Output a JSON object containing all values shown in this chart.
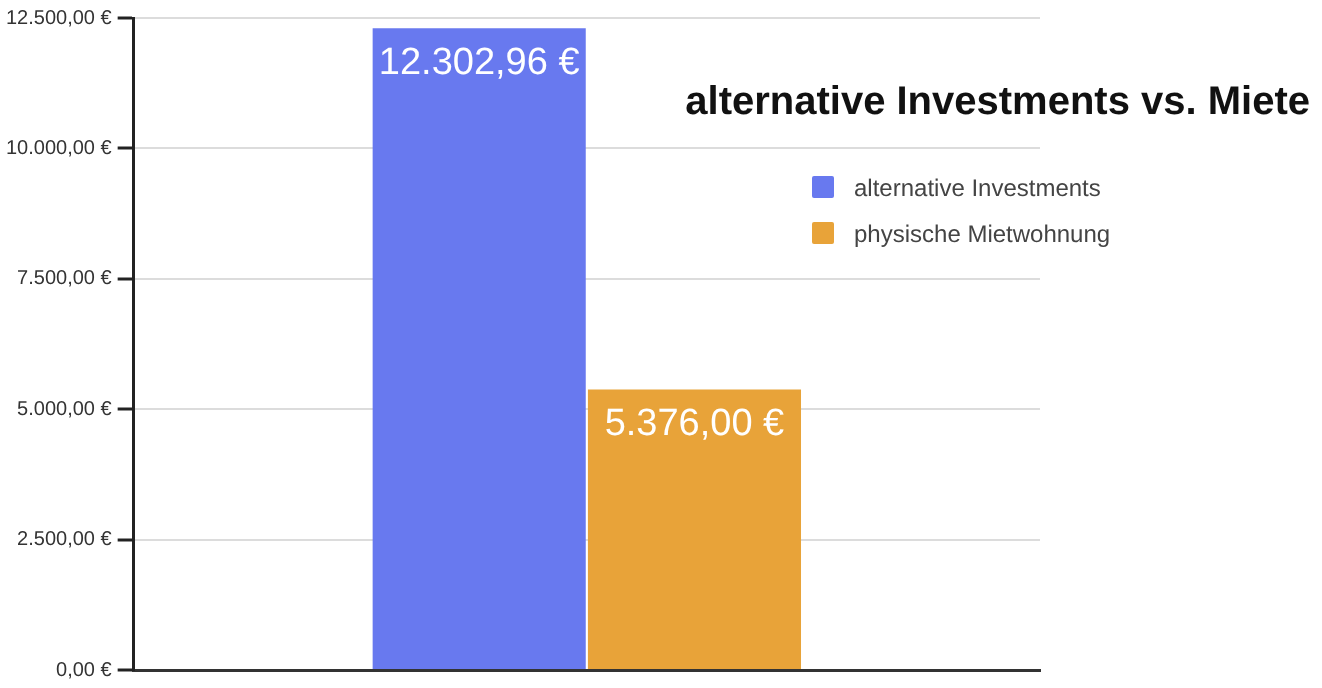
{
  "chart_data": {
    "type": "bar",
    "title": "alternative Investments vs. Miete",
    "categories": [
      null
    ],
    "series": [
      {
        "name": "alternative Investments",
        "color": "#6879ef",
        "values": [
          12302.96
        ],
        "value_labels": [
          "12.302,96 €"
        ]
      },
      {
        "name": "physische Mietwohnung",
        "color": "#e8a339",
        "values": [
          5376.0
        ],
        "value_labels": [
          "5.376,00 €"
        ]
      }
    ],
    "ylim": [
      0,
      12500
    ],
    "yticks": [
      {
        "value": 0,
        "label": "0,00 €"
      },
      {
        "value": 2500,
        "label": "2.500,00 €"
      },
      {
        "value": 5000,
        "label": "5.000,00 €"
      },
      {
        "value": 7500,
        "label": "7.500,00 €"
      },
      {
        "value": 10000,
        "label": "10.000,00 €"
      },
      {
        "value": 12500,
        "label": "12.500,00 €"
      }
    ],
    "grid": "y",
    "legend": "right"
  }
}
